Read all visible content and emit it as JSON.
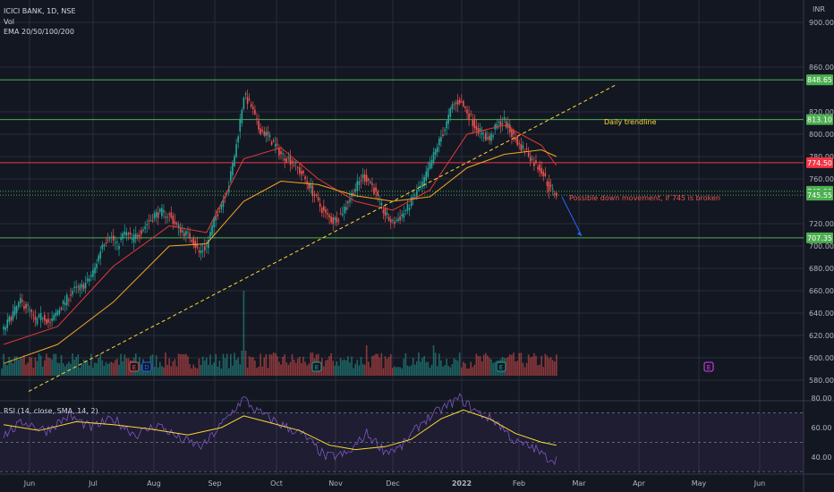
{
  "header": {
    "symbol": "ICICI BANK, 1D, NSE",
    "volume_label": "Vol",
    "ema_label": "EMA 20/50/100/200",
    "currency": "INR"
  },
  "rsi_label": "RSI (14, close, SMA, 14, 2)",
  "annotations": {
    "trendline": "Daily trendline",
    "forecast": "Possible down movement, if 745 is broken"
  },
  "colors": {
    "background": "#131722",
    "up": "#26a69a",
    "down": "#ef5350",
    "level_green": "#4caf50",
    "level_red": "#f23645",
    "ema20": "#e53935",
    "ema50": "#f5a623",
    "trendline": "#fdd835",
    "rsi": "#7e57c2",
    "rsi_ma": "#fdd835",
    "arrow": "#2962ff"
  },
  "chart_data": [
    {
      "type": "candlestick",
      "title": "ICICI BANK, 1D, NSE",
      "x_labels": [
        "Jun",
        "Jul",
        "Aug",
        "Sep",
        "Oct",
        "Nov",
        "Dec",
        "2022",
        "Feb",
        "Mar",
        "Apr",
        "May",
        "Jun"
      ],
      "y_ticks": [
        580,
        600,
        620,
        640,
        660,
        680,
        700,
        720,
        760,
        780,
        800,
        820,
        860,
        900
      ],
      "ylim": [
        565,
        900
      ],
      "grid": true,
      "price_levels": [
        {
          "label": "848.65",
          "value": 848.65,
          "color": "green"
        },
        {
          "label": "813.10",
          "value": 813.1,
          "color": "green"
        },
        {
          "label": "774.50",
          "value": 774.5,
          "color": "red"
        },
        {
          "label": "748.90",
          "value": 748.9,
          "color": "green"
        },
        {
          "label": "745.55",
          "value": 745.55,
          "color": "green"
        },
        {
          "label": "707.35",
          "value": 707.35,
          "color": "green"
        }
      ],
      "close_path": [
        [
          1,
          625
        ],
        [
          6,
          640
        ],
        [
          10,
          650
        ],
        [
          14,
          645
        ],
        [
          18,
          632
        ],
        [
          22,
          638
        ],
        [
          26,
          630
        ],
        [
          30,
          642
        ],
        [
          34,
          650
        ],
        [
          38,
          660
        ],
        [
          42,
          662
        ],
        [
          46,
          668
        ],
        [
          50,
          680
        ],
        [
          54,
          702
        ],
        [
          58,
          710
        ],
        [
          62,
          700
        ],
        [
          66,
          712
        ],
        [
          70,
          706
        ],
        [
          74,
          712
        ],
        [
          78,
          720
        ],
        [
          82,
          728
        ],
        [
          86,
          730
        ],
        [
          90,
          727
        ],
        [
          94,
          718
        ],
        [
          98,
          712
        ],
        [
          102,
          707
        ],
        [
          106,
          694
        ],
        [
          110,
          700
        ],
        [
          114,
          722
        ],
        [
          118,
          738
        ],
        [
          122,
          755
        ],
        [
          126,
          790
        ],
        [
          130,
          835
        ],
        [
          134,
          825
        ],
        [
          138,
          805
        ],
        [
          142,
          800
        ],
        [
          146,
          792
        ],
        [
          150,
          782
        ],
        [
          154,
          778
        ],
        [
          158,
          772
        ],
        [
          162,
          762
        ],
        [
          166,
          752
        ],
        [
          170,
          738
        ],
        [
          174,
          728
        ],
        [
          178,
          722
        ],
        [
          182,
          728
        ],
        [
          186,
          740
        ],
        [
          190,
          752
        ],
        [
          194,
          762
        ],
        [
          198,
          758
        ],
        [
          202,
          742
        ],
        [
          206,
          728
        ],
        [
          210,
          720
        ],
        [
          214,
          726
        ],
        [
          218,
          734
        ],
        [
          222,
          746
        ],
        [
          226,
          755
        ],
        [
          230,
          772
        ],
        [
          234,
          790
        ],
        [
          238,
          805
        ],
        [
          242,
          825
        ],
        [
          246,
          830
        ],
        [
          250,
          820
        ],
        [
          254,
          808
        ],
        [
          258,
          800
        ],
        [
          262,
          795
        ],
        [
          266,
          808
        ],
        [
          270,
          812
        ],
        [
          274,
          800
        ],
        [
          278,
          790
        ],
        [
          282,
          785
        ],
        [
          286,
          774
        ],
        [
          290,
          768
        ],
        [
          294,
          752
        ],
        [
          298,
          746
        ]
      ],
      "ema20_path": [
        [
          1,
          612
        ],
        [
          30,
          628
        ],
        [
          60,
          682
        ],
        [
          90,
          718
        ],
        [
          110,
          712
        ],
        [
          130,
          778
        ],
        [
          150,
          788
        ],
        [
          170,
          760
        ],
        [
          190,
          740
        ],
        [
          210,
          732
        ],
        [
          230,
          750
        ],
        [
          250,
          800
        ],
        [
          270,
          808
        ],
        [
          290,
          790
        ],
        [
          298,
          772
        ]
      ],
      "ema50_path": [
        [
          1,
          595
        ],
        [
          30,
          612
        ],
        [
          60,
          650
        ],
        [
          90,
          700
        ],
        [
          110,
          702
        ],
        [
          130,
          740
        ],
        [
          150,
          758
        ],
        [
          170,
          755
        ],
        [
          190,
          745
        ],
        [
          210,
          740
        ],
        [
          230,
          744
        ],
        [
          250,
          770
        ],
        [
          270,
          782
        ],
        [
          290,
          786
        ],
        [
          298,
          780
        ]
      ]
    },
    {
      "type": "line",
      "title": "RSI (14, close, SMA, 14, 2)",
      "y_ticks": [
        40,
        60,
        80
      ],
      "ylim": [
        30,
        86
      ],
      "series": [
        {
          "values": [
            [
              1,
              55
            ],
            [
              12,
              64
            ],
            [
              24,
              58
            ],
            [
              36,
              68
            ],
            [
              48,
              60
            ],
            [
              60,
              66
            ],
            [
              72,
              55
            ],
            [
              84,
              62
            ],
            [
              96,
              52
            ],
            [
              108,
              47
            ],
            [
              120,
              65
            ],
            [
              130,
              80
            ],
            [
              136,
              72
            ],
            [
              150,
              62
            ],
            [
              162,
              55
            ],
            [
              174,
              40
            ],
            [
              186,
              42
            ],
            [
              196,
              56
            ],
            [
              206,
              44
            ],
            [
              214,
              46
            ],
            [
              226,
              64
            ],
            [
              238,
              74
            ],
            [
              246,
              80
            ],
            [
              256,
              70
            ],
            [
              266,
              64
            ],
            [
              276,
              50
            ],
            [
              286,
              46
            ],
            [
              292,
              40
            ],
            [
              298,
              38
            ]
          ]
        },
        {
          "values": [
            [
              1,
              62
            ],
            [
              20,
              58
            ],
            [
              40,
              64
            ],
            [
              60,
              62
            ],
            [
              80,
              59
            ],
            [
              100,
              55
            ],
            [
              118,
              60
            ],
            [
              130,
              68
            ],
            [
              142,
              64
            ],
            [
              160,
              58
            ],
            [
              176,
              48
            ],
            [
              190,
              45
            ],
            [
              206,
              47
            ],
            [
              220,
              52
            ],
            [
              236,
              66
            ],
            [
              248,
              72
            ],
            [
              262,
              66
            ],
            [
              276,
              56
            ],
            [
              290,
              50
            ],
            [
              298,
              48
            ]
          ]
        }
      ],
      "bands": [
        30,
        50,
        70
      ]
    }
  ]
}
